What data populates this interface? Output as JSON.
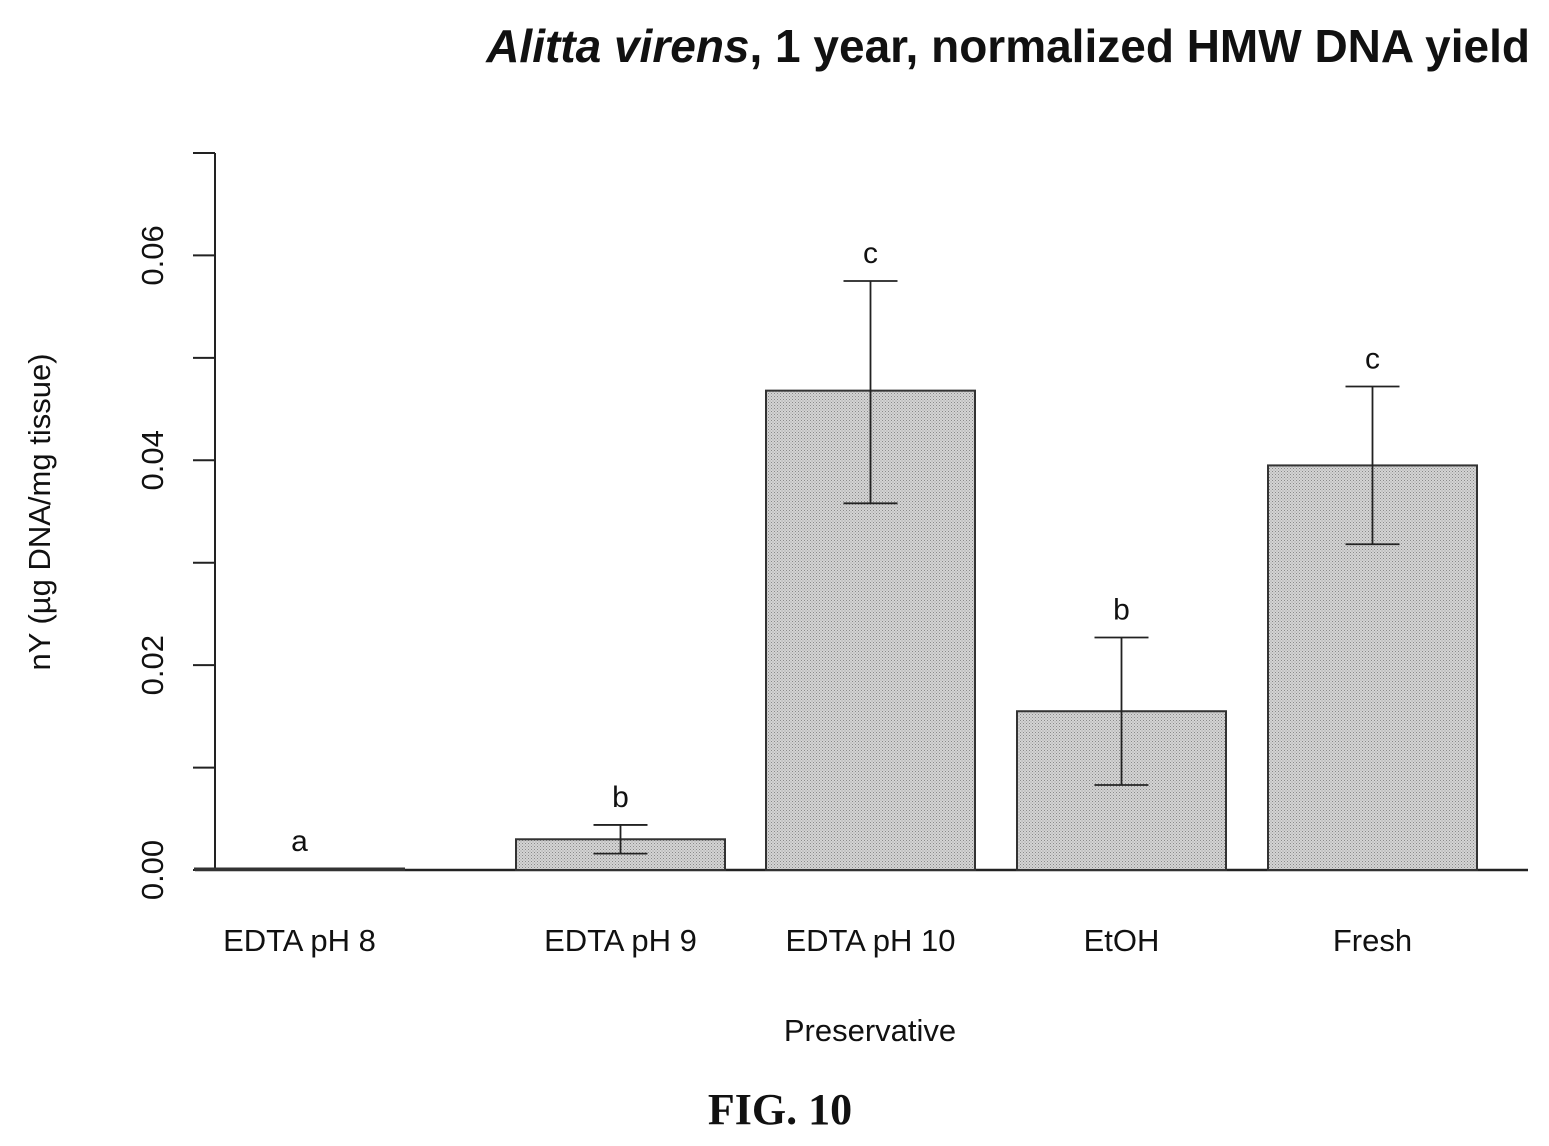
{
  "chart_data": {
    "type": "bar",
    "title": {
      "italic_part": "Alitta virens",
      "rest": ", 1 year, normalized HMW DNA yield"
    },
    "xlabel": "Preservative",
    "ylabel": "nY (µg DNA/mg tissue)",
    "categories": [
      "EDTA pH 8",
      "EDTA pH 9",
      "EDTA pH 10",
      "EtOH",
      "Fresh"
    ],
    "values": [
      0.0001,
      0.003,
      0.0468,
      0.0155,
      0.0395
    ],
    "error_lower": [
      0.0001,
      0.0016,
      0.0358,
      0.0083,
      0.0318
    ],
    "error_upper": [
      0.0001,
      0.0044,
      0.0575,
      0.0227,
      0.0472
    ],
    "significance_letters": [
      "a",
      "b",
      "c",
      "b",
      "c"
    ],
    "ylim": [
      0,
      0.07
    ],
    "yticks": [
      0,
      0.01,
      0.02,
      0.03,
      0.04,
      0.05,
      0.06,
      0.07
    ],
    "ytick_labels": [
      "0.00",
      "",
      "0.02",
      "",
      "0.04",
      "",
      "0.06",
      ""
    ],
    "grid": false,
    "bar_fill": "#c9c9c9",
    "bar_stroke": "#333333"
  },
  "figure_label": "FIG. 10"
}
